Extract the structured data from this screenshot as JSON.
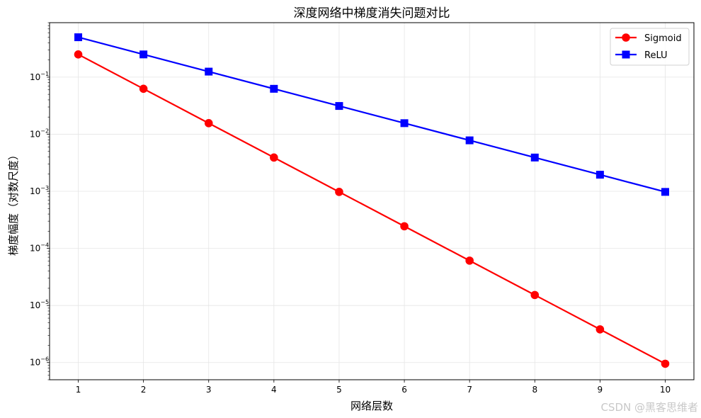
{
  "chart_data": {
    "type": "line",
    "title": "深度网络中梯度消失问题对比",
    "xlabel": "网络层数",
    "ylabel": "梯度幅度（对数尺度）",
    "x": [
      1,
      2,
      3,
      4,
      5,
      6,
      7,
      8,
      9,
      10
    ],
    "x_ticks": [
      "1",
      "2",
      "3",
      "4",
      "5",
      "6",
      "7",
      "8",
      "9",
      "10"
    ],
    "y_scale": "log",
    "ylim": [
      5e-07,
      0.9
    ],
    "y_ticks": [
      {
        "value": 0.1,
        "base": "10",
        "exp": "−1"
      },
      {
        "value": 0.01,
        "base": "10",
        "exp": "−2"
      },
      {
        "value": 0.001,
        "base": "10",
        "exp": "−3"
      },
      {
        "value": 0.0001,
        "base": "10",
        "exp": "−4"
      },
      {
        "value": 1e-05,
        "base": "10",
        "exp": "−5"
      },
      {
        "value": 1e-06,
        "base": "10",
        "exp": "−6"
      }
    ],
    "grid": true,
    "legend_position": "top-right",
    "series": [
      {
        "name": "Sigmoid",
        "color": "#ff0000",
        "marker": "circle",
        "values": [
          0.25,
          0.0625,
          0.015625,
          0.00390625,
          0.0009765625,
          0.000244140625,
          6.103515625e-05,
          1.52587890625e-05,
          3.814697265625e-06,
          9.5367431640625e-07
        ]
      },
      {
        "name": "ReLU",
        "color": "#0000ff",
        "marker": "square",
        "values": [
          0.5,
          0.25,
          0.125,
          0.0625,
          0.03125,
          0.015625,
          0.0078125,
          0.00390625,
          0.001953125,
          0.0009765625
        ]
      }
    ]
  },
  "watermark": "CSDN @黑客思维者"
}
